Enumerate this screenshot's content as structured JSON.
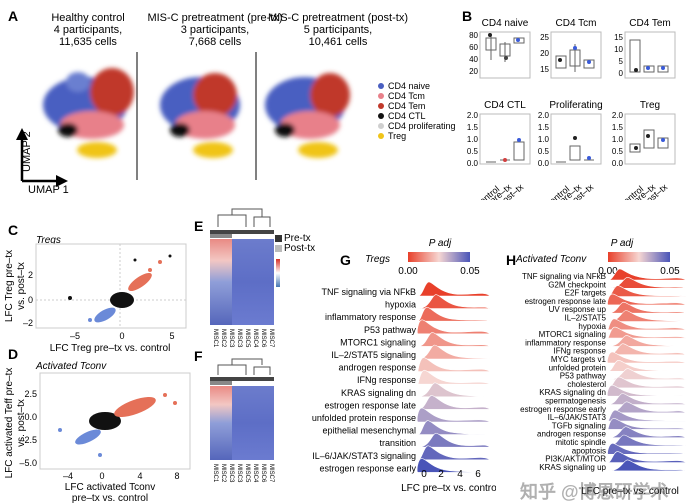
{
  "panels": {
    "A": "A",
    "B": "B",
    "C": "C",
    "D": "D",
    "E": "E",
    "F": "F",
    "G": "G",
    "H": "H"
  },
  "umap": {
    "groups": [
      {
        "title": "Healthy control",
        "participants": "4 participants,",
        "cells": "11,635 cells"
      },
      {
        "title": "MIS-C pretreatment (pre-tx)",
        "participants": "3 participants,",
        "cells": "7,668 cells"
      },
      {
        "title": "MIS-C pretreatment (post-tx)",
        "participants": "5 participants,",
        "cells": "10,461 cells"
      }
    ],
    "axis_y": "UMAP 2",
    "axis_x": "UMAP 1",
    "legend": [
      {
        "label": "CD4 naive",
        "color": "#4a5fc1"
      },
      {
        "label": "CD4 Tcm",
        "color": "#e8808a"
      },
      {
        "label": "CD4 Tem",
        "color": "#c0392b"
      },
      {
        "label": "CD4 CTL",
        "color": "#111111"
      },
      {
        "label": "CD4 proliferating",
        "color": "#cfcfcf"
      },
      {
        "label": "Treg",
        "color": "#f0c419"
      }
    ]
  },
  "boxplots": {
    "xcats": [
      "control",
      "pre–tx",
      "post–tx"
    ],
    "row1_ticks": [
      "80",
      "60",
      "40",
      "20"
    ],
    "row2_ticks": [
      "2.0",
      "1.5",
      "1.0",
      "0.5",
      "0.0"
    ],
    "plots": [
      {
        "title": "CD4 naive",
        "ticks": [
          "80",
          "60",
          "40",
          "20"
        ]
      },
      {
        "title": "CD4 Tcm",
        "ticks": [
          "15",
          "20",
          "25"
        ]
      },
      {
        "title": "CD4 Tem",
        "ticks": [
          "15",
          "10",
          "5",
          "0"
        ]
      },
      {
        "title": "CD4 CTL",
        "ticks": [
          "2.0",
          "1.5",
          "1.0",
          "0.5",
          "0.0"
        ]
      },
      {
        "title": "Proliferating",
        "ticks": [
          "2.0",
          "1.5",
          "1.0",
          "0.5",
          "0.0"
        ]
      },
      {
        "title": "Treg",
        "ticks": [
          "2.0",
          "1.5",
          "1.0",
          "0.5",
          "0.0"
        ]
      }
    ]
  },
  "scatterC": {
    "title": "Tregs",
    "ylabel1": "LFC Treg pre–tx",
    "ylabel2": "vs. post–tx",
    "xlabel": "LFC Treg pre–tx vs. control",
    "xticks": [
      "–5",
      "0",
      "5"
    ],
    "yticks": [
      "2",
      "0",
      "–2"
    ]
  },
  "scatterD": {
    "title": "Activated Tconv",
    "ylabel1": "LFC activated Teff pre–tx",
    "ylabel2": "vs. post–tx",
    "xlabel1": "LFC activated Tconv",
    "xlabel2": "pre–tx vs. control",
    "xticks": [
      "–4",
      "0",
      "4",
      "8"
    ],
    "yticks": [
      "2.5",
      "0.0",
      "–2.5",
      "–5.0"
    ]
  },
  "heatmap": {
    "legend": [
      "Pre-tx",
      "Post-tx"
    ],
    "cols": [
      "MISC1",
      "MISC2",
      "MISC3",
      "MISC3",
      "MISC5",
      "MISC4",
      "MISC6",
      "MISC7"
    ]
  },
  "ridgeG": {
    "title": "Tregs",
    "legend_title": "P adj",
    "legend_ticks": [
      "0.00",
      "0.05"
    ],
    "xlabel": "LFC pre–tx vs. control",
    "xticks": [
      "0",
      "2",
      "4",
      "6"
    ],
    "terms": [
      "TNF signaling via NFkB",
      "hypoxia",
      "inflammatory response",
      "P53 pathway",
      "MTORC1 signaling",
      "IL–2/STAT5 signaling",
      "androgen response",
      "IFNg response",
      "KRAS signaling dn",
      "estrogen response late",
      "unfolded protein response",
      "epithelial mesenchymal",
      "transition",
      "IL–6/JAK/STAT3 signaling",
      "estrogen response early"
    ]
  },
  "ridgeH": {
    "title": "Activated Tconv",
    "legend_title": "P adj",
    "legend_ticks": [
      "0.00",
      "0.05"
    ],
    "xlabel": "LFC pre–tx vs. control",
    "terms": [
      "TNF signaling via NFkB",
      "G2M checkpoint",
      "E2F targets",
      "estrogen response late",
      "UV response up",
      "IL–2/STAT5",
      "hypoxia",
      "MTORC1 signaling",
      "inflammatory response",
      "IFNg response",
      "MYC targets v1",
      "unfolded protein",
      "P53 pathway",
      "cholesterol",
      "KRAS signaling dn",
      "spermatogenesis",
      "estrogen response early",
      "IL–6/JAK/STAT3",
      "TGFb signaling",
      "androgen response",
      "mitotic spindle",
      "apoptosis",
      "PI3K/AKT/MTOR",
      "KRAS signaling up"
    ]
  },
  "watermark": "知乎 @博恩研学术"
}
